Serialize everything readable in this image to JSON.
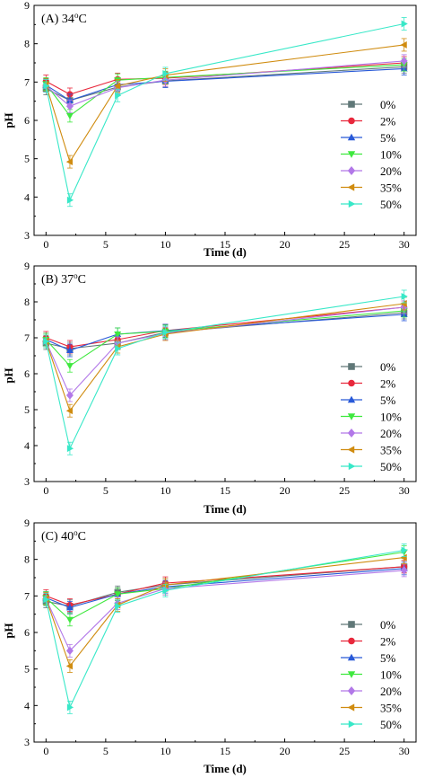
{
  "chart_data": [
    {
      "type": "line",
      "panel_label": "(A) 34",
      "temp_sup": "o",
      "temp_unit": "C",
      "xlabel": "Time (d)",
      "ylabel": "pH",
      "x": [
        0,
        2,
        6,
        10,
        30
      ],
      "xticks": [
        0,
        5,
        10,
        15,
        20,
        25,
        30
      ],
      "yticks": [
        3,
        4,
        5,
        6,
        7,
        8,
        9
      ],
      "xlim": [
        -1,
        31
      ],
      "ylim": [
        3,
        9
      ],
      "legend_position": "center-right",
      "series": [
        {
          "name": "0%",
          "color": "#607878",
          "marker": "square",
          "values": [
            6.83,
            6.52,
            6.87,
            7.03,
            7.4
          ]
        },
        {
          "name": "2%",
          "color": "#e8283c",
          "marker": "circle",
          "values": [
            7.02,
            6.68,
            7.07,
            7.1,
            7.5
          ]
        },
        {
          "name": "5%",
          "color": "#2859d8",
          "marker": "triangle-up",
          "values": [
            6.92,
            6.52,
            6.93,
            7.02,
            7.35
          ]
        },
        {
          "name": "10%",
          "color": "#3ee83e",
          "marker": "triangle-down",
          "values": [
            6.95,
            6.12,
            7.05,
            7.12,
            7.45
          ]
        },
        {
          "name": "20%",
          "color": "#b278e8",
          "marker": "diamond",
          "values": [
            6.9,
            6.37,
            6.85,
            7.05,
            7.55
          ]
        },
        {
          "name": "35%",
          "color": "#d08c10",
          "marker": "triangle-left",
          "values": [
            6.93,
            4.92,
            6.9,
            7.18,
            7.97
          ]
        },
        {
          "name": "50%",
          "color": "#38e8c8",
          "marker": "triangle-right",
          "values": [
            6.9,
            3.92,
            6.65,
            7.22,
            8.52
          ]
        }
      ]
    },
    {
      "type": "line",
      "panel_label": "(B) 37",
      "temp_sup": "o",
      "temp_unit": "C",
      "xlabel": "Time (d)",
      "ylabel": "pH",
      "x": [
        0,
        2,
        6,
        10,
        30
      ],
      "xticks": [
        0,
        5,
        10,
        15,
        20,
        25,
        30
      ],
      "yticks": [
        3,
        4,
        5,
        6,
        7,
        8,
        9
      ],
      "xlim": [
        -1,
        31
      ],
      "ylim": [
        3,
        9
      ],
      "legend_position": "center-right",
      "series": [
        {
          "name": "0%",
          "color": "#607878",
          "marker": "square",
          "values": [
            6.85,
            6.7,
            6.85,
            7.15,
            7.7
          ]
        },
        {
          "name": "2%",
          "color": "#e8283c",
          "marker": "circle",
          "values": [
            7.0,
            6.75,
            6.95,
            7.2,
            7.85
          ]
        },
        {
          "name": "5%",
          "color": "#2859d8",
          "marker": "triangle-up",
          "values": [
            6.95,
            6.65,
            7.1,
            7.2,
            7.65
          ]
        },
        {
          "name": "10%",
          "color": "#3ee83e",
          "marker": "triangle-down",
          "values": [
            6.95,
            6.22,
            7.1,
            7.18,
            7.75
          ]
        },
        {
          "name": "20%",
          "color": "#b278e8",
          "marker": "diamond",
          "values": [
            6.9,
            5.4,
            6.85,
            7.12,
            7.85
          ]
        },
        {
          "name": "35%",
          "color": "#d08c10",
          "marker": "triangle-left",
          "values": [
            6.9,
            4.97,
            6.75,
            7.1,
            7.95
          ]
        },
        {
          "name": "50%",
          "color": "#38e8c8",
          "marker": "triangle-right",
          "values": [
            6.9,
            3.92,
            6.7,
            7.15,
            8.15
          ]
        }
      ]
    },
    {
      "type": "line",
      "panel_label": "(C) 40",
      "temp_sup": "o",
      "temp_unit": "C",
      "xlabel": "Time (d)",
      "ylabel": "pH",
      "x": [
        0,
        2,
        6,
        10,
        30
      ],
      "xticks": [
        0,
        5,
        10,
        15,
        20,
        25,
        30
      ],
      "yticks": [
        3,
        4,
        5,
        6,
        7,
        8,
        9
      ],
      "xlim": [
        -1,
        31
      ],
      "ylim": [
        3,
        9
      ],
      "legend_position": "bottom-right",
      "series": [
        {
          "name": "0%",
          "color": "#607878",
          "marker": "square",
          "values": [
            6.85,
            6.72,
            7.1,
            7.3,
            7.8
          ]
        },
        {
          "name": "2%",
          "color": "#e8283c",
          "marker": "circle",
          "values": [
            7.0,
            6.75,
            7.05,
            7.35,
            7.8
          ]
        },
        {
          "name": "5%",
          "color": "#2859d8",
          "marker": "triangle-up",
          "values": [
            6.95,
            6.68,
            7.05,
            7.25,
            7.75
          ]
        },
        {
          "name": "10%",
          "color": "#3ee83e",
          "marker": "triangle-down",
          "values": [
            6.95,
            6.35,
            7.05,
            7.2,
            8.2
          ]
        },
        {
          "name": "20%",
          "color": "#b278e8",
          "marker": "diamond",
          "values": [
            6.92,
            5.5,
            6.8,
            7.2,
            7.7
          ]
        },
        {
          "name": "35%",
          "color": "#d08c10",
          "marker": "triangle-left",
          "values": [
            6.92,
            5.08,
            6.75,
            7.3,
            8.05
          ]
        },
        {
          "name": "50%",
          "color": "#38e8c8",
          "marker": "triangle-right",
          "values": [
            6.9,
            3.95,
            6.72,
            7.15,
            8.25
          ]
        }
      ]
    }
  ]
}
